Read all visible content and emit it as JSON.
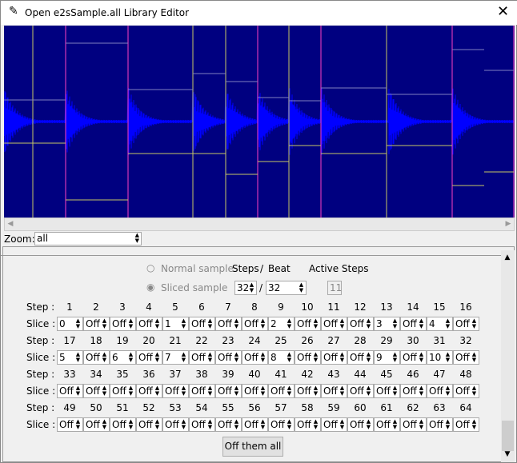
{
  "window": {
    "title": "Open e2sSample.all Library Editor",
    "close_icon": "close-icon",
    "app_icon": "feather-icon"
  },
  "colors": {
    "waveform_bg": "#000080",
    "waveform": "#0000ff",
    "slice_marker": "#ff40c0",
    "beat_marker": "#c8c864"
  },
  "zoom": {
    "label": "Zoom:",
    "value": "all"
  },
  "mode": {
    "normal_label": "Normal sample",
    "sliced_label": "Sliced sample",
    "selected": "sliced",
    "steps_label": "Steps",
    "slash": "/",
    "beat_label": "Beat",
    "active_steps_label": "Active Steps",
    "steps": "32",
    "beat": "32",
    "active_steps": "11"
  },
  "grid": {
    "step_label": "Step :",
    "slice_label": "Slice :",
    "rows": [
      {
        "steps": [
          "1",
          "2",
          "3",
          "4",
          "5",
          "6",
          "7",
          "8",
          "9",
          "10",
          "11",
          "12",
          "13",
          "14",
          "15",
          "16"
        ],
        "slices": [
          "0",
          "Off",
          "Off",
          "Off",
          "1",
          "Off",
          "Off",
          "Off",
          "2",
          "Off",
          "Off",
          "Off",
          "3",
          "Off",
          "4",
          "Off"
        ]
      },
      {
        "steps": [
          "17",
          "18",
          "19",
          "20",
          "21",
          "22",
          "23",
          "24",
          "25",
          "26",
          "27",
          "28",
          "29",
          "30",
          "31",
          "32"
        ],
        "slices": [
          "5",
          "Off",
          "6",
          "Off",
          "7",
          "Off",
          "Off",
          "Off",
          "8",
          "Off",
          "Off",
          "Off",
          "9",
          "Off",
          "10",
          "Off"
        ]
      },
      {
        "steps": [
          "33",
          "34",
          "35",
          "36",
          "37",
          "38",
          "39",
          "40",
          "41",
          "42",
          "43",
          "44",
          "45",
          "46",
          "47",
          "48"
        ],
        "slices": [
          "Off",
          "Off",
          "Off",
          "Off",
          "Off",
          "Off",
          "Off",
          "Off",
          "Off",
          "Off",
          "Off",
          "Off",
          "Off",
          "Off",
          "Off",
          "Off"
        ]
      },
      {
        "steps": [
          "49",
          "50",
          "51",
          "52",
          "53",
          "54",
          "55",
          "56",
          "57",
          "58",
          "59",
          "60",
          "61",
          "62",
          "63",
          "64"
        ],
        "slices": [
          "Off",
          "Off",
          "Off",
          "Off",
          "Off",
          "Off",
          "Off",
          "Off",
          "Off",
          "Off",
          "Off",
          "Off",
          "Off",
          "Off",
          "Off",
          "Off"
        ]
      }
    ]
  },
  "off_all_label": "Off them all"
}
